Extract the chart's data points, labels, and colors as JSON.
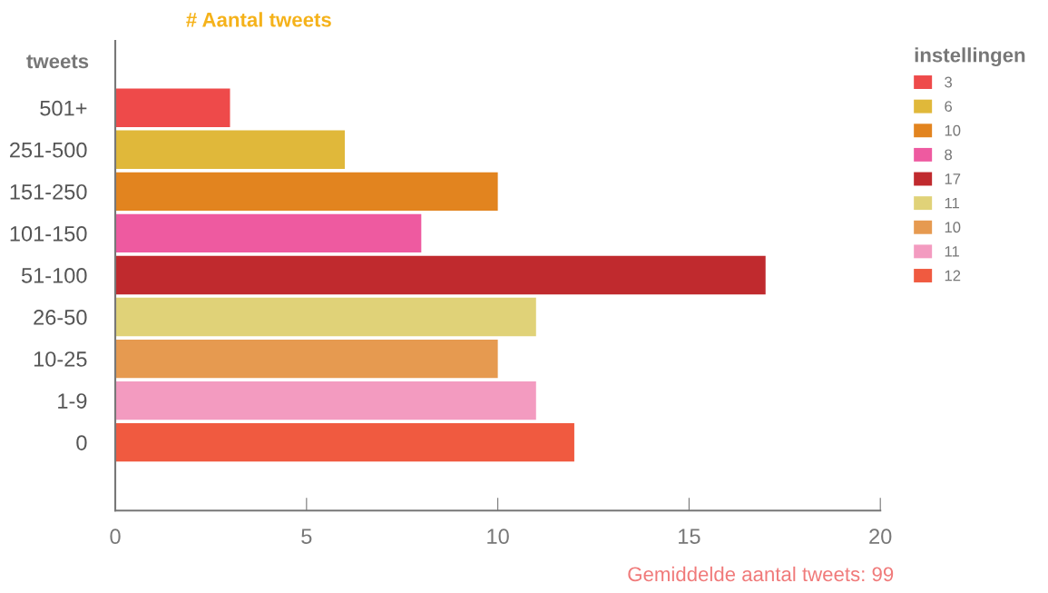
{
  "chart_data": {
    "type": "bar",
    "orientation": "horizontal",
    "title": "# Aantal tweets",
    "ylabel": "tweets",
    "legend_title": "instellingen",
    "categories": [
      "501+",
      "251-500",
      "151-250",
      "101-150",
      "51-100",
      "26-50",
      "10-25",
      "1-9",
      "0"
    ],
    "series": [
      {
        "name": "3",
        "color": "#ee4a4a",
        "values": [
          3,
          null,
          null,
          null,
          null,
          null,
          null,
          null,
          null
        ]
      },
      {
        "name": "6",
        "color": "#e0b83a",
        "values": [
          null,
          6,
          null,
          null,
          null,
          null,
          null,
          null,
          null
        ]
      },
      {
        "name": "10",
        "color": "#e2841f",
        "values": [
          null,
          null,
          10,
          null,
          null,
          null,
          null,
          null,
          null
        ]
      },
      {
        "name": "8",
        "color": "#ee5aa0",
        "values": [
          null,
          null,
          null,
          8,
          null,
          null,
          null,
          null,
          null
        ]
      },
      {
        "name": "17",
        "color": "#c02a2e",
        "values": [
          null,
          null,
          null,
          null,
          17,
          null,
          null,
          null,
          null
        ]
      },
      {
        "name": "11",
        "color": "#e0d278",
        "values": [
          null,
          null,
          null,
          null,
          null,
          11,
          null,
          null,
          null
        ]
      },
      {
        "name": "10",
        "color": "#e69a50",
        "values": [
          null,
          null,
          null,
          null,
          null,
          null,
          10,
          null,
          null
        ]
      },
      {
        "name": "11",
        "color": "#f39bc0",
        "values": [
          null,
          null,
          null,
          null,
          null,
          null,
          null,
          11,
          null
        ]
      },
      {
        "name": "12",
        "color": "#f05a40",
        "values": [
          null,
          null,
          null,
          null,
          null,
          null,
          null,
          null,
          12
        ]
      }
    ],
    "xlim": [
      0,
      20
    ],
    "xticks": [
      0,
      5,
      10,
      15,
      20
    ],
    "grid": false,
    "legend": "right",
    "annotations": [
      "Gemiddelde aantal tweets: 99"
    ]
  }
}
